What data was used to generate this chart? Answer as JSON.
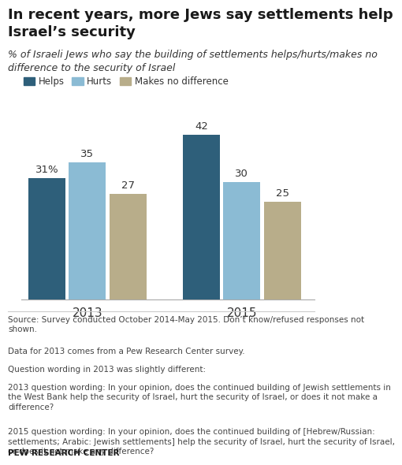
{
  "title": "In recent years, more Jews say settlements help\nIsrael’s security",
  "subtitle": "% of Israeli Jews who say the building of settlements helps/hurts/makes no\ndifference to the security of Israel",
  "years": [
    "2013",
    "2015"
  ],
  "categories": [
    "Helps",
    "Hurts",
    "Makes no difference"
  ],
  "values": {
    "2013": [
      31,
      35,
      27
    ],
    "2015": [
      42,
      30,
      25
    ]
  },
  "bar_colors": [
    "#2E5F7A",
    "#8BBBD4",
    "#B8AD8A"
  ],
  "label_2013": [
    "31%",
    "35",
    "27"
  ],
  "label_2015": [
    "42",
    "30",
    "25"
  ],
  "ylim": [
    0,
    50
  ],
  "background_color": "#FFFFFF",
  "title_fontsize": 13,
  "subtitle_fontsize": 9,
  "legend_fontsize": 9,
  "source_text": "Source: Survey conducted October 2014-May 2015. Don’t know/refused responses not\nshown.\n\nData for 2013 comes from a Pew Research Center survey.\n\nQuestion wording in 2013 was slightly different:\n\n2013 question wording: In your opinion, does the continued building of Jewish settlements in\nthe West Bank help the security of Israel, hurt the security of Israel, or does it not make a\ndifference?\n\n2015 question wording: In your opinion, does the continued building of [Hebrew/Russian:\nsettlements; Arabic: Jewish settlements] help the security of Israel, hurt the security of Israel,\nor does it not make any difference?",
  "footer": "PEW RESEARCH CENTER"
}
